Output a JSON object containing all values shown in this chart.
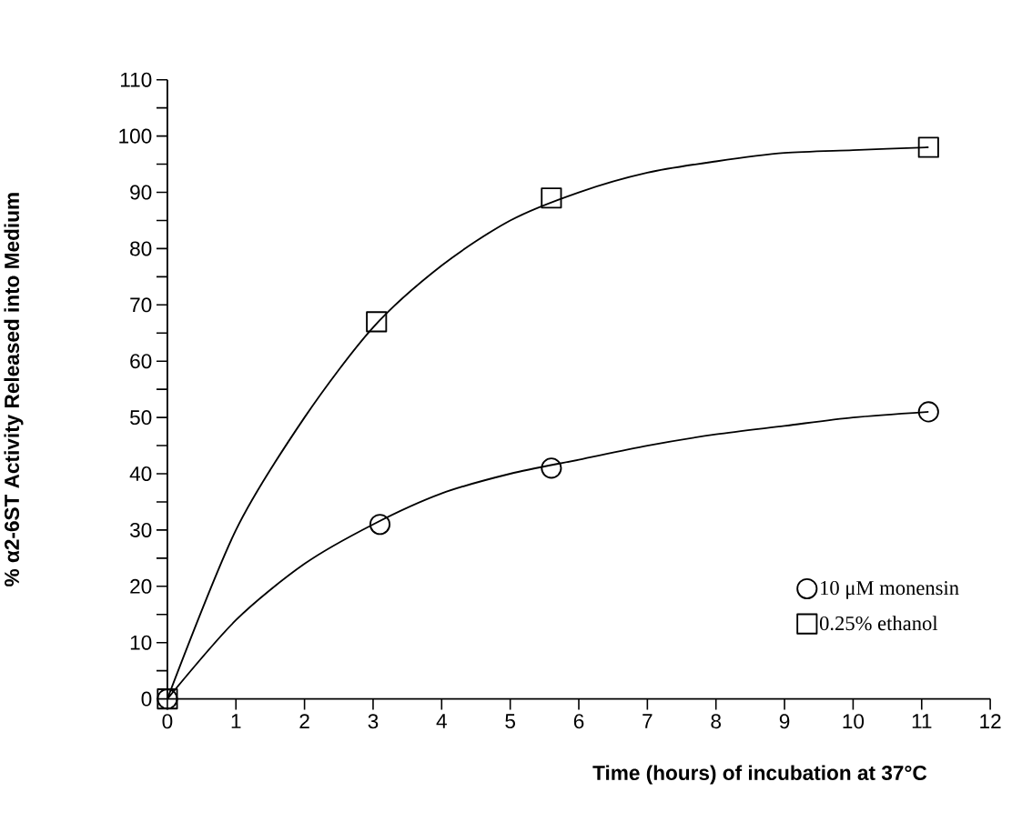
{
  "chart_data": {
    "type": "scatter",
    "xlabel": "Time (hours) of incubation at 37°C",
    "ylabel": "% α2-6ST Activity Released into Medium",
    "xlim": [
      0,
      12
    ],
    "ylim": [
      0,
      110
    ],
    "xticks": [
      0,
      1,
      2,
      3,
      4,
      5,
      6,
      7,
      8,
      9,
      10,
      11,
      12
    ],
    "yticks": [
      0,
      {
        "value": 5,
        "label": null
      },
      10,
      {
        "value": 15,
        "label": null
      },
      20,
      {
        "value": 25,
        "label": null
      },
      30,
      {
        "value": 35,
        "label": null
      },
      40,
      {
        "value": 45,
        "label": null
      },
      50,
      {
        "value": 55,
        "label": null
      },
      60,
      {
        "value": 65,
        "label": null
      },
      70,
      {
        "value": 75,
        "label": null
      },
      80,
      {
        "value": 85,
        "label": null
      },
      90,
      {
        "value": 95,
        "label": null
      },
      100,
      {
        "value": 105,
        "label": null
      },
      110
    ],
    "grid": false,
    "legend": "bottom right",
    "series": [
      {
        "name": "10 μM monensin",
        "marker": "circle",
        "color": "#000000",
        "x": [
          0,
          3.1,
          5.6,
          11.1
        ],
        "values": [
          0,
          31,
          41,
          51
        ]
      },
      {
        "name": "0.25% ethanol",
        "marker": "square",
        "color": "#000000",
        "x": [
          0,
          3.05,
          5.6,
          11.1
        ],
        "values": [
          0,
          67,
          89,
          98
        ]
      },
      {
        "type": "line",
        "marker": "none",
        "color": "#000000",
        "x": [
          0,
          1,
          2,
          3,
          4,
          5,
          6,
          7,
          8,
          9,
          10,
          11.1
        ],
        "values": [
          0,
          14,
          24,
          31,
          36.5,
          40,
          42.5,
          45,
          47,
          48.5,
          50,
          51
        ]
      },
      {
        "type": "line",
        "marker": "none",
        "color": "#000000",
        "x": [
          0,
          1,
          2,
          3,
          4,
          5,
          6,
          7,
          8,
          9,
          10,
          11.1
        ],
        "values": [
          0,
          30,
          50,
          66,
          77,
          85,
          90,
          93.5,
          95.5,
          97,
          97.5,
          98
        ]
      }
    ]
  }
}
